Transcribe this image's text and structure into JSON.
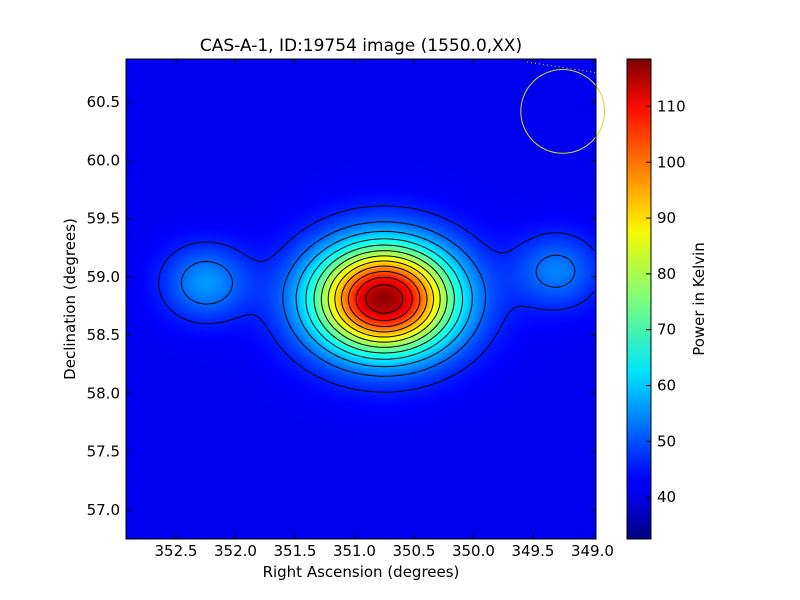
{
  "chart_data": {
    "type": "heatmap",
    "title": "CAS-A-1, ID:19754 image (1550.0,XX)",
    "xlabel": "Right Ascension (degrees)",
    "ylabel": "Declination (degrees)",
    "xlim": [
      352.92,
      348.97
    ],
    "ylim": [
      56.75,
      60.87
    ],
    "x_ticks": [
      352.5,
      352.0,
      351.5,
      351.0,
      350.5,
      350.0,
      349.5,
      349.0
    ],
    "x_tick_labels": [
      "352.5",
      "352.0",
      "351.5",
      "351.0",
      "350.5",
      "350.0",
      "349.5",
      "349.0"
    ],
    "y_ticks": [
      57.0,
      57.5,
      58.0,
      58.5,
      59.0,
      59.5,
      60.0,
      60.5
    ],
    "y_tick_labels": [
      "57.0",
      "57.5",
      "58.0",
      "58.5",
      "59.0",
      "59.5",
      "60.0",
      "60.5"
    ],
    "colorbar": {
      "label": "Power in Kelvin",
      "range": [
        32.5,
        118.5
      ],
      "ticks": [
        40,
        50,
        60,
        70,
        80,
        90,
        100,
        110
      ],
      "tick_labels": [
        "40",
        "50",
        "60",
        "70",
        "80",
        "90",
        "100",
        "110"
      ],
      "colormap": "jet"
    },
    "background_level": 42,
    "sources": [
      {
        "ra": 350.75,
        "dec": 58.81,
        "peak": 75,
        "sigma_ra": 0.42,
        "sigma_dec": 0.33
      },
      {
        "ra": 352.25,
        "dec": 58.95,
        "peak": 14,
        "sigma_ra": 0.25,
        "sigma_dec": 0.22
      },
      {
        "ra": 349.3,
        "dec": 59.05,
        "peak": 12,
        "sigma_ra": 0.25,
        "sigma_dec": 0.22
      }
    ],
    "contour_levels": [
      46,
      52,
      58,
      64,
      70,
      76,
      82,
      88,
      94,
      100,
      106,
      112
    ],
    "contour_color": "#000000",
    "beam": {
      "ra": 349.25,
      "dec": 60.42,
      "radius_deg": 0.36,
      "color": "#d8d820"
    },
    "grid": false
  }
}
